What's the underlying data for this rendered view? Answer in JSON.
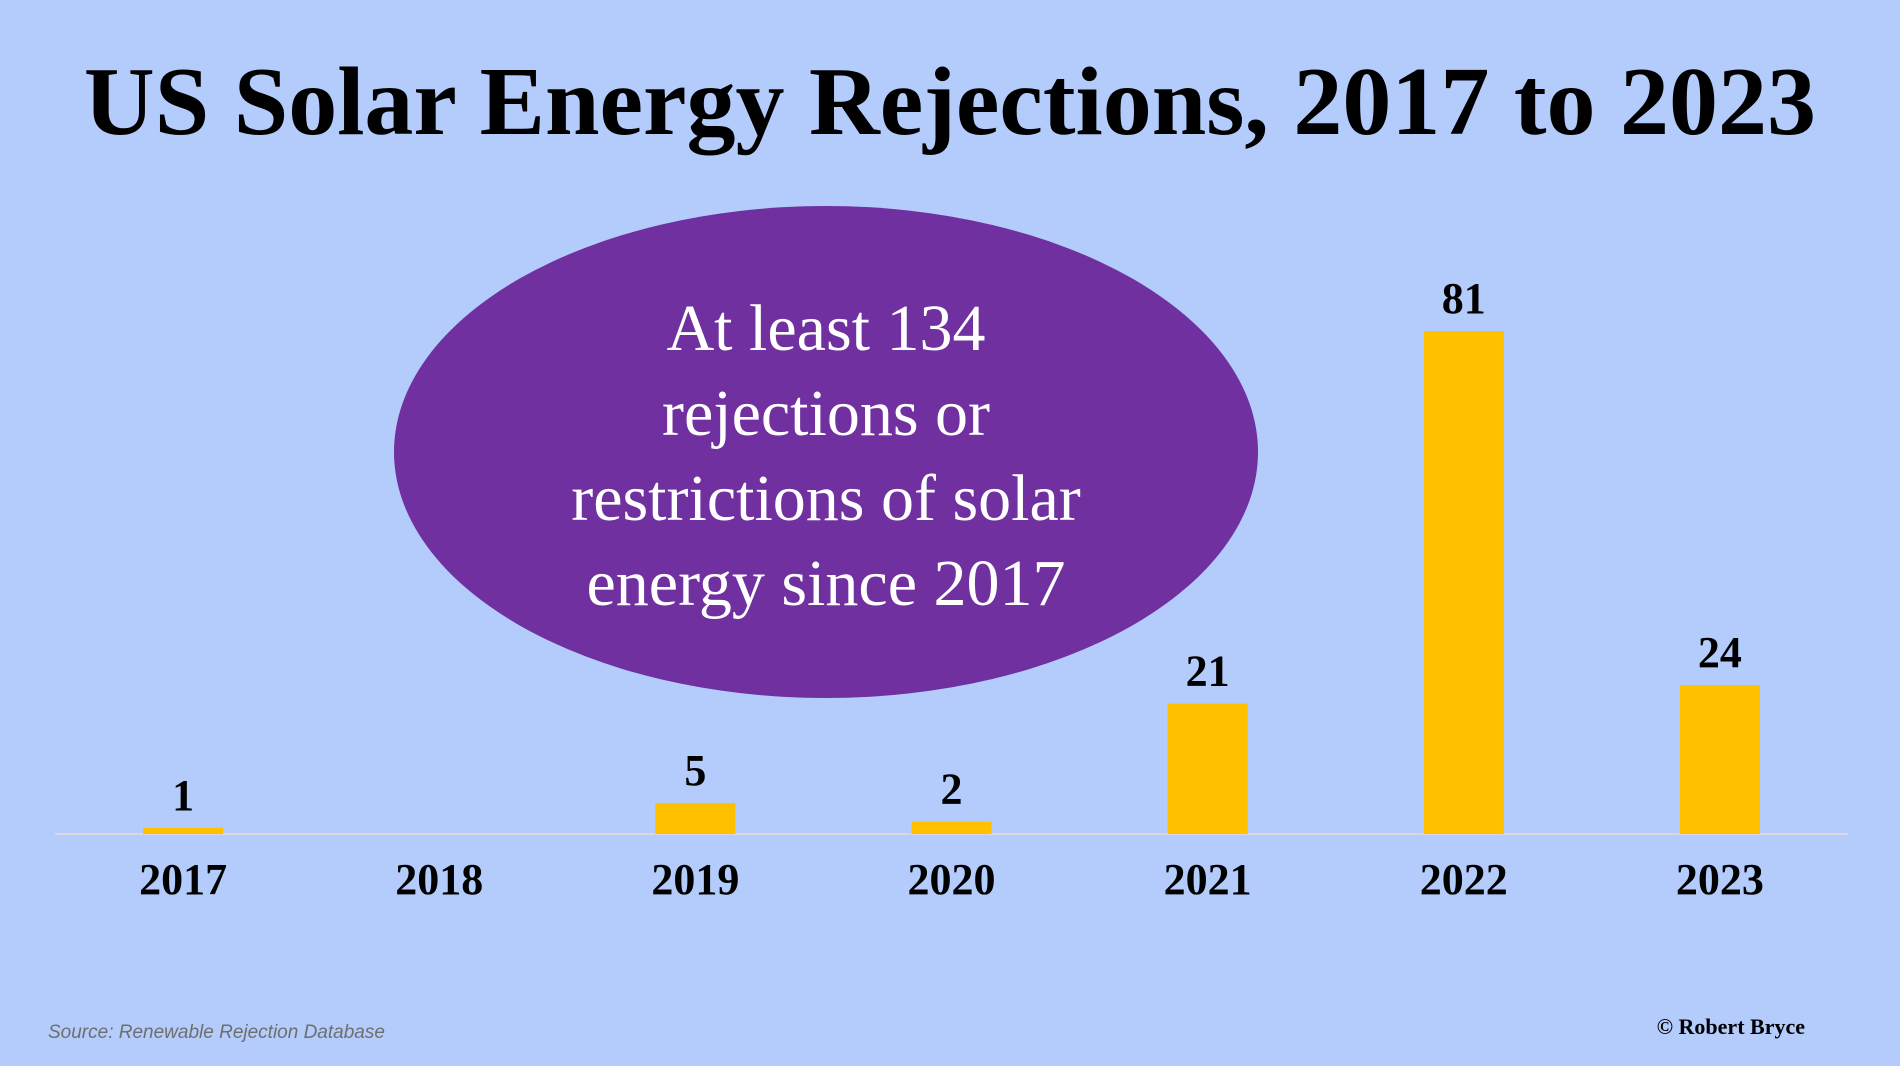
{
  "chart_data": {
    "type": "bar",
    "title": "US Solar Energy Rejections, 2017 to 2023",
    "categories": [
      "2017",
      "2018",
      "2019",
      "2020",
      "2021",
      "2022",
      "2023"
    ],
    "values": [
      1,
      0,
      5,
      2,
      21,
      81,
      24
    ],
    "data_labels": [
      "1",
      "",
      "5",
      "2",
      "21",
      "81",
      "24"
    ],
    "xlabel": "",
    "ylabel": "",
    "ylim": [
      0,
      81
    ],
    "grid": false,
    "legend": "none",
    "annotation_lines": [
      "At least 134",
      "rejections or",
      "restrictions of solar",
      "energy since 2017"
    ],
    "colors": {
      "background": "#b3ccfc",
      "bar": "#ffc000",
      "annotation_fill": "#7030a0",
      "annotation_text": "#ffffff",
      "axis_line": "#d9d9d9"
    }
  },
  "footer": {
    "source": "Source: Renewable Rejection Database",
    "credit": "© Robert Bryce"
  }
}
